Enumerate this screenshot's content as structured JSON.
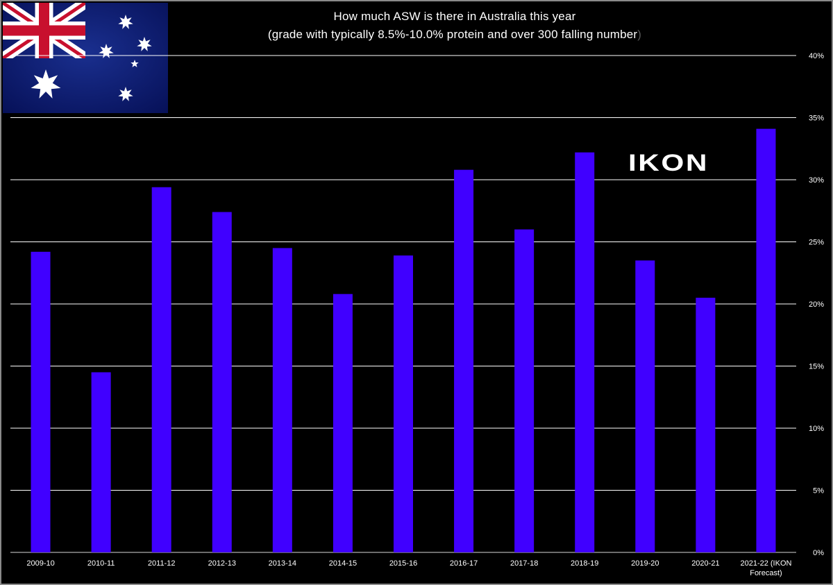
{
  "brand": {
    "logo_text": "IKON"
  },
  "chart_data": {
    "type": "bar",
    "title": "How much ASW is there in Australia this year",
    "subtitle": "(grade with typically 8.5%-10.0% protein and over 300 falling number",
    "subtitle_close": ")",
    "categories": [
      "2009-10",
      "2010-11",
      "2011-12",
      "2012-13",
      "2013-14",
      "2014-15",
      "2015-16",
      "2016-17",
      "2017-18",
      "2018-19",
      "2019-20",
      "2020-21",
      "2021-22 (IKON Forecast)"
    ],
    "category_lines": [
      [
        "2009-10"
      ],
      [
        "2010-11"
      ],
      [
        "2011-12"
      ],
      [
        "2012-13"
      ],
      [
        "2013-14"
      ],
      [
        "2014-15"
      ],
      [
        "2015-16"
      ],
      [
        "2016-17"
      ],
      [
        "2017-18"
      ],
      [
        "2018-19"
      ],
      [
        "2019-20"
      ],
      [
        "2020-21"
      ],
      [
        "2021-22 (IKON",
        "Forecast)"
      ]
    ],
    "values": [
      24.2,
      14.5,
      29.4,
      27.4,
      24.5,
      20.8,
      23.9,
      30.8,
      26.0,
      32.2,
      23.5,
      20.5,
      34.1
    ],
    "xlabel": "",
    "ylabel": "",
    "ylim": [
      0,
      40
    ],
    "yticks": [
      0,
      5,
      10,
      15,
      20,
      25,
      30,
      35,
      40
    ],
    "ytick_labels": [
      "0%",
      "5%",
      "10%",
      "15%",
      "20%",
      "25%",
      "30%",
      "35%",
      "40%"
    ],
    "y_axis_side": "right",
    "grid": true,
    "legend": "none",
    "bar_color": "#4000ff",
    "grid_color": "#ffffff",
    "background_color": "#000000"
  },
  "flag": {
    "name": "australian-flag",
    "colors": {
      "blue": "#012169",
      "red": "#c8102e",
      "white": "#ffffff"
    }
  }
}
